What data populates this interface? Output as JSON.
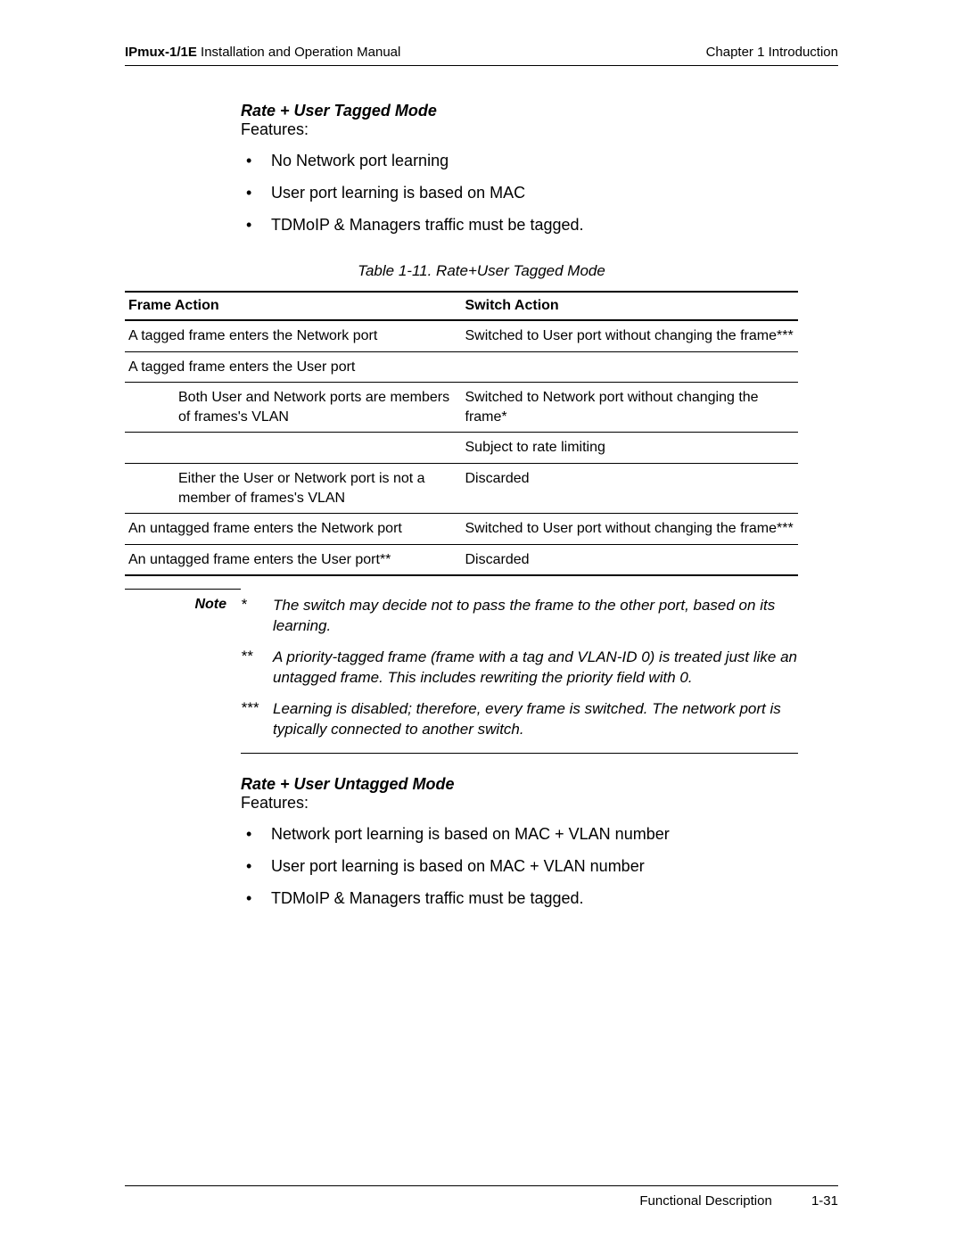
{
  "header": {
    "product": "IPmux-1/1E",
    "manual_suffix": " Installation and Operation Manual",
    "chapter": "Chapter 1  Introduction"
  },
  "section1": {
    "heading": "Rate + User Tagged Mode",
    "features_label": "Features:",
    "features": [
      "No Network port learning",
      "User port learning is based on MAC",
      "TDMoIP & Managers traffic must be tagged."
    ]
  },
  "table": {
    "caption": "Table 1-11.  Rate+User Tagged Mode",
    "col1_header": "Frame Action",
    "col2_header": "Switch Action",
    "rows": [
      {
        "c1": "A tagged frame enters the Network port",
        "c2": "Switched to User port without changing the frame***",
        "sep": true,
        "indent": false
      },
      {
        "c1": "A tagged frame enters the User port",
        "c2": "",
        "sep": true,
        "indent": false
      },
      {
        "c1": "Both User and Network ports are members of frames's VLAN",
        "c2": "Switched to Network port without changing the frame*",
        "sep": true,
        "indent": true
      },
      {
        "c1": "",
        "c2": "Subject to rate limiting",
        "sep": true,
        "indent": true
      },
      {
        "c1": "Either the User or Network port is not a member of frames's VLAN",
        "c2": "Discarded",
        "sep": true,
        "indent": true
      },
      {
        "c1": "An untagged frame enters the Network port",
        "c2": "Switched to User port without changing the frame***",
        "sep": true,
        "indent": false
      },
      {
        "c1": "An untagged frame enters the User port**",
        "c2": "Discarded",
        "sep": true,
        "indent": false,
        "last": true
      }
    ]
  },
  "notes": {
    "label": "Note",
    "items": [
      {
        "mark": "*",
        "text": "The switch may decide not to pass the frame to the other port, based on its learning."
      },
      {
        "mark": "**",
        "text": "A priority-tagged frame (frame with a tag and VLAN-ID 0) is treated just like an untagged frame. This includes rewriting the priority field with 0."
      },
      {
        "mark": "***",
        "text": "Learning is disabled; therefore, every frame is switched. The network port is typically connected to another switch."
      }
    ]
  },
  "section2": {
    "heading": "Rate + User Untagged Mode",
    "features_label": "Features:",
    "features": [
      "Network port learning is based on MAC + VLAN number",
      "User port learning is based on MAC + VLAN number",
      "TDMoIP & Managers traffic must be tagged."
    ]
  },
  "footer": {
    "title": "Functional Description",
    "page": "1-31"
  }
}
